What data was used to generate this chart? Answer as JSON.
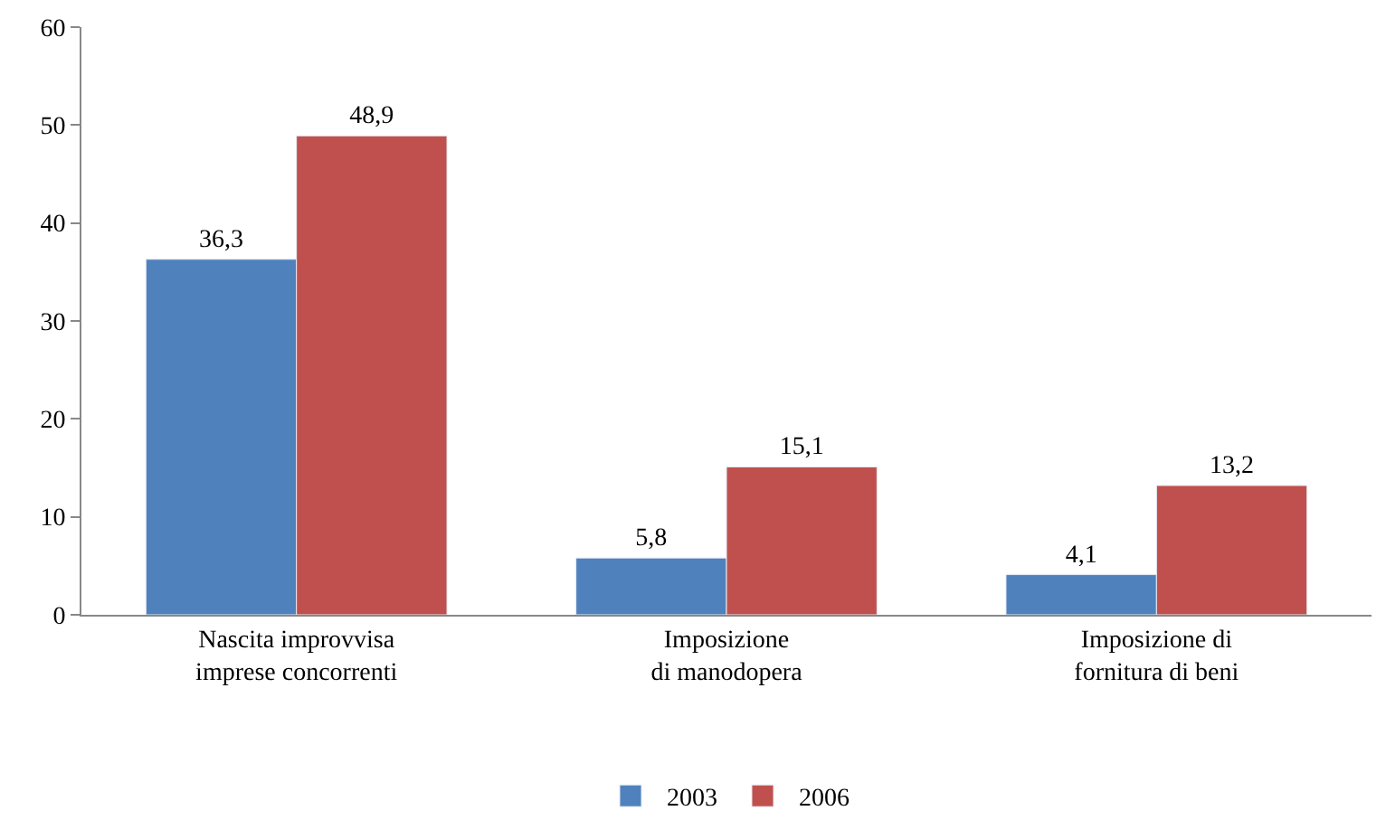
{
  "chart_data": {
    "type": "bar",
    "categories": [
      "Nascita improvvisa imprese concorrenti",
      "Imposizione di manodopera",
      "Imposizione di fornitura di beni"
    ],
    "series": [
      {
        "name": "2003",
        "color": "#4f81bd",
        "values": [
          36.3,
          5.8,
          4.1
        ],
        "value_labels": [
          "36,3",
          "5,8",
          "4,1"
        ]
      },
      {
        "name": "2006",
        "color": "#c0504d",
        "values": [
          48.9,
          15.1,
          13.2
        ],
        "value_labels": [
          "48,9",
          "15,1",
          "13,2"
        ]
      }
    ],
    "ylim": [
      0,
      60
    ],
    "yticks": [
      0,
      10,
      20,
      30,
      40,
      50,
      60
    ],
    "legend": "bottom"
  }
}
